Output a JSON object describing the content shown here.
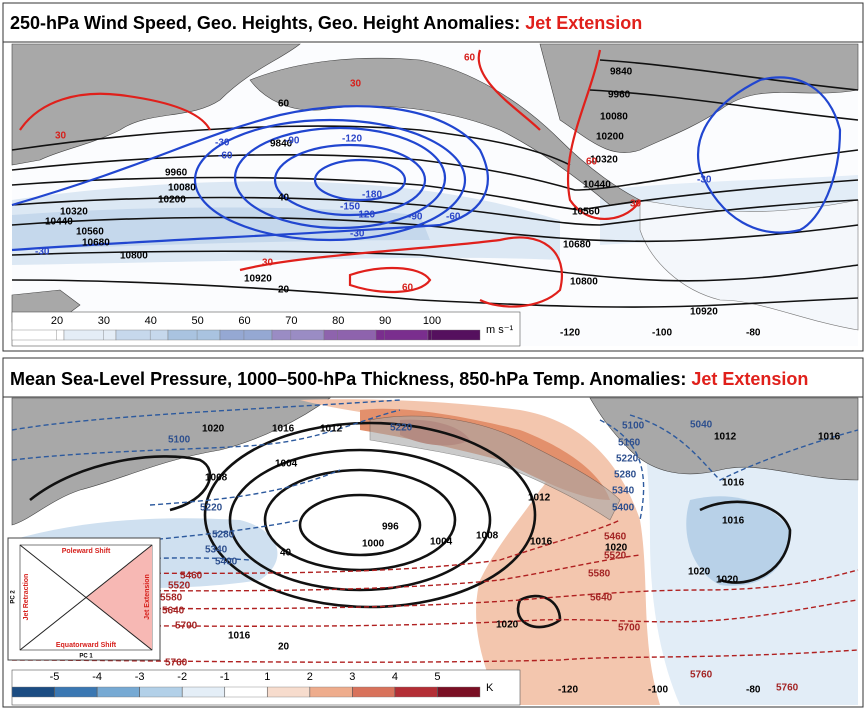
{
  "panels": [
    {
      "title": "250-hPa Wind Speed, Geo. Heights, Geo. Height Anomalies: ",
      "title_highlight": "Jet Extension",
      "colorbar": {
        "ticks": [
          20,
          30,
          40,
          50,
          60,
          70,
          80,
          90,
          100
        ],
        "unit": "m s⁻¹"
      },
      "longitudes": [
        "-120",
        "-100",
        "-80"
      ],
      "labels": [
        "9840",
        "9960",
        "10080",
        "10200",
        "10320",
        "10440",
        "10560",
        "10680",
        "10800",
        "10920",
        "9960",
        "10080",
        "10200",
        "10320",
        "10440",
        "10560",
        "10680",
        "10800",
        "10920",
        "9840",
        "-30",
        "-60",
        "-90",
        "-120",
        "-150",
        "-180",
        "-120",
        "-90",
        "-60",
        "-30",
        "-30",
        "-30",
        "30",
        "30",
        "30",
        "60",
        "60",
        "30",
        "60",
        "40",
        "20"
      ]
    },
    {
      "title": "Mean Sea-Level Pressure, 1000–500-hPa Thickness, 850-hPa Temp. Anomalies: ",
      "title_highlight": "Jet Extension",
      "colorbar": {
        "ticks": [
          -5,
          -4,
          -3,
          -2,
          -1,
          1,
          2,
          3,
          4,
          5
        ],
        "unit": "K"
      },
      "longitudes": [
        "-120",
        "-100",
        "-80"
      ],
      "labels": [
        "1020",
        "1016",
        "1012",
        "1008",
        "1004",
        "1000",
        "996",
        "1004",
        "1008",
        "1016",
        "1012",
        "1020",
        "1016",
        "1020",
        "1012",
        "1016",
        "1016",
        "1020",
        "1020",
        "1016",
        "5100",
        "5220",
        "5280",
        "5340",
        "5400",
        "5460",
        "5520",
        "5580",
        "5640",
        "5700",
        "5760",
        "5220",
        "5100",
        "5160",
        "5220",
        "5280",
        "5340",
        "5400",
        "5460",
        "5520",
        "5580",
        "5640",
        "5700",
        "5040",
        "5760",
        "5760",
        "40",
        "20"
      ]
    }
  ],
  "inset": {
    "top": "Poleward Shift",
    "bottom": "Equatorward Shift",
    "left": "Jet Retraction",
    "right": "Jet Extension",
    "x_axis": "PC 1",
    "y_axis": "PC 2"
  }
}
